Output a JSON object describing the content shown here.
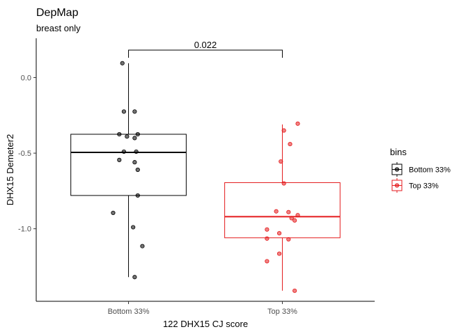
{
  "chart_data": {
    "type": "boxplot",
    "title": "DepMap",
    "subtitle": "breast only",
    "xlabel": "122 DHX15 CJ score",
    "ylabel": "DHX15 Demeter2",
    "ylim": [
      -1.48,
      0.26
    ],
    "yticks": [
      0.0,
      -0.5,
      -1.0
    ],
    "ytick_labels": [
      "0.0",
      "-0.5",
      "-1.0"
    ],
    "categories": [
      "Bottom 33%",
      "Top 33%"
    ],
    "grid": false,
    "legend": {
      "title": "bins",
      "position": "right",
      "entries": [
        "Bottom 33%",
        "Top 33%"
      ]
    },
    "series": [
      {
        "name": "Bottom 33%",
        "color": "#000000",
        "box": {
          "whisker_low": -1.32,
          "q1": -0.78,
          "median": -0.495,
          "q3": -0.375,
          "whisker_high": 0.095
        },
        "points": [
          {
            "x": 0.96,
            "y": 0.095
          },
          {
            "x": 0.97,
            "y": -0.225
          },
          {
            "x": 1.04,
            "y": -0.225
          },
          {
            "x": 0.94,
            "y": -0.375
          },
          {
            "x": 1.06,
            "y": -0.375
          },
          {
            "x": 0.99,
            "y": -0.39
          },
          {
            "x": 1.04,
            "y": -0.4
          },
          {
            "x": 0.97,
            "y": -0.49
          },
          {
            "x": 1.05,
            "y": -0.49
          },
          {
            "x": 0.94,
            "y": -0.545
          },
          {
            "x": 1.04,
            "y": -0.56
          },
          {
            "x": 1.06,
            "y": -0.61
          },
          {
            "x": 1.06,
            "y": -0.78
          },
          {
            "x": 0.9,
            "y": -0.895
          },
          {
            "x": 1.03,
            "y": -0.99
          },
          {
            "x": 1.09,
            "y": -1.115
          },
          {
            "x": 1.04,
            "y": -1.32
          }
        ]
      },
      {
        "name": "Top 33%",
        "color": "#e41a1c",
        "box": {
          "whisker_low": -1.41,
          "q1": -1.06,
          "median": -0.92,
          "q3": -0.695,
          "whisker_high": -0.31
        },
        "points": [
          {
            "x": 2.1,
            "y": -0.305
          },
          {
            "x": 2.01,
            "y": -0.35
          },
          {
            "x": 2.05,
            "y": -0.44
          },
          {
            "x": 1.99,
            "y": -0.555
          },
          {
            "x": 2.01,
            "y": -0.7
          },
          {
            "x": 1.96,
            "y": -0.885
          },
          {
            "x": 2.04,
            "y": -0.89
          },
          {
            "x": 2.1,
            "y": -0.91
          },
          {
            "x": 2.06,
            "y": -0.93
          },
          {
            "x": 2.08,
            "y": -0.945
          },
          {
            "x": 1.9,
            "y": -1.005
          },
          {
            "x": 1.98,
            "y": -1.03
          },
          {
            "x": 1.9,
            "y": -1.065
          },
          {
            "x": 2.04,
            "y": -1.07
          },
          {
            "x": 1.98,
            "y": -1.165
          },
          {
            "x": 1.9,
            "y": -1.215
          },
          {
            "x": 2.08,
            "y": -1.41
          }
        ]
      }
    ],
    "annotation": {
      "label": "0.022",
      "from": "Bottom 33%",
      "to": "Top 33%"
    }
  }
}
